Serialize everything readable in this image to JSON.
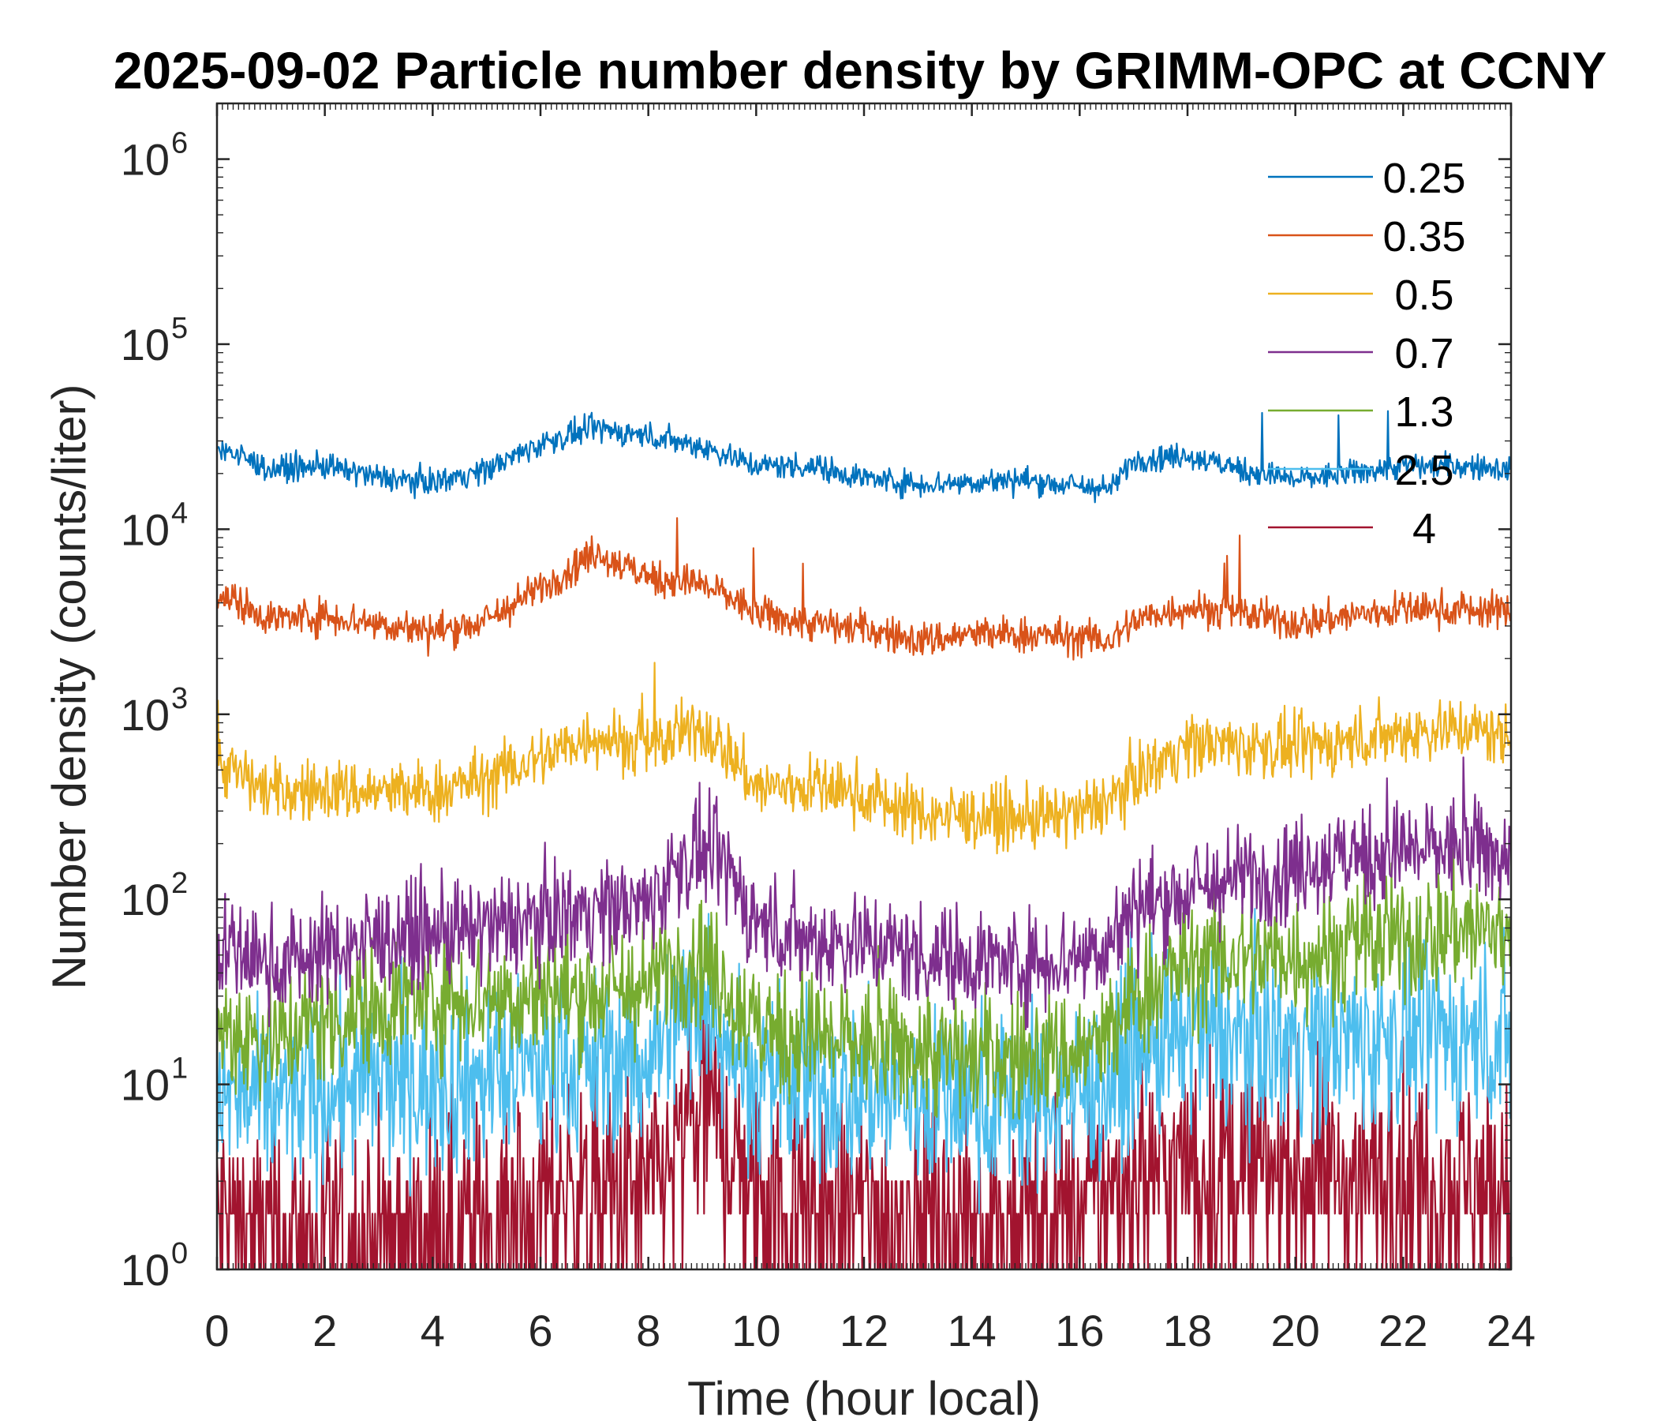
{
  "chart_data": {
    "type": "line",
    "title": "2025-09-02 Particle number density by GRIMM-OPC at CCNY",
    "xlabel": "Time (hour local)",
    "ylabel": "Number density (counts/liter)",
    "xlim": [
      0,
      24
    ],
    "ylim": [
      1,
      2000000
    ],
    "yscale": "log",
    "x_ticks": [
      0,
      2,
      4,
      6,
      8,
      10,
      12,
      14,
      16,
      18,
      20,
      22,
      24
    ],
    "x_tick_labels": [
      "0",
      "2",
      "4",
      "6",
      "8",
      "10",
      "12",
      "14",
      "16",
      "18",
      "20",
      "22",
      "24"
    ],
    "y_ticks": [
      {
        "value": 1,
        "base": "10",
        "exp": "0"
      },
      {
        "value": 10,
        "base": "10",
        "exp": "1"
      },
      {
        "value": 100,
        "base": "10",
        "exp": "2"
      },
      {
        "value": 1000,
        "base": "10",
        "exp": "3"
      },
      {
        "value": 10000,
        "base": "10",
        "exp": "4"
      },
      {
        "value": 100000,
        "base": "10",
        "exp": "5"
      },
      {
        "value": 1000000,
        "base": "10",
        "exp": "6"
      }
    ],
    "legend": {
      "location": "top-right"
    },
    "x": [
      0,
      1,
      2,
      3,
      4,
      5,
      6,
      7,
      8,
      8.5,
      9,
      9.5,
      10,
      11,
      12,
      13,
      14,
      15,
      16,
      16.6,
      17,
      18,
      19,
      20,
      21,
      22,
      23,
      24
    ],
    "series": [
      {
        "name": "0.25",
        "color": "#0072BD",
        "noise": 0.05,
        "values": [
          28000,
          21000,
          22000,
          19000,
          18000,
          21000,
          29000,
          35000,
          32000,
          30000,
          28000,
          25000,
          22000,
          22000,
          19000,
          17500,
          18000,
          18500,
          17000,
          16500,
          24000,
          25000,
          21000,
          18500,
          20000,
          22000,
          22000,
          21000
        ]
      },
      {
        "name": "0.35",
        "color": "#D95319",
        "noise": 0.07,
        "values": [
          4500,
          3300,
          3400,
          3100,
          2800,
          3200,
          4800,
          7500,
          5500,
          5300,
          5000,
          4300,
          3500,
          3100,
          2900,
          2500,
          2700,
          2700,
          2600,
          2500,
          3200,
          3800,
          3500,
          3100,
          3400,
          3700,
          3700,
          3600
        ]
      },
      {
        "name": "0.5",
        "color": "#EDB120",
        "noise": 0.12,
        "values": [
          550,
          380,
          390,
          380,
          380,
          450,
          580,
          780,
          650,
          750,
          850,
          620,
          400,
          410,
          370,
          290,
          280,
          270,
          290,
          350,
          450,
          700,
          680,
          650,
          720,
          800,
          850,
          750
        ]
      },
      {
        "name": "0.7",
        "color": "#7E2F8E",
        "noise": 0.2,
        "values": [
          55,
          45,
          52,
          62,
          65,
          68,
          80,
          90,
          92,
          150,
          180,
          140,
          75,
          60,
          60,
          50,
          48,
          45,
          50,
          60,
          90,
          110,
          130,
          150,
          170,
          180,
          190,
          170
        ]
      },
      {
        "name": "1.3",
        "color": "#77AC30",
        "noise": 0.25,
        "values": [
          20,
          18,
          22,
          27,
          30,
          30,
          30,
          32,
          33,
          45,
          50,
          30,
          20,
          18,
          16,
          15,
          14,
          14,
          15,
          18,
          30,
          45,
          48,
          50,
          55,
          60,
          70,
          65
        ]
      },
      {
        "name": "2.5",
        "color": "#4DBEEE",
        "noise": 0.35,
        "values": [
          8,
          8,
          9,
          10,
          10,
          11,
          12,
          13,
          14,
          22,
          30,
          18,
          10,
          9,
          9,
          8,
          8,
          8,
          9,
          10,
          15,
          18,
          18,
          17,
          17,
          18,
          18,
          17
        ]
      },
      {
        "name": "4",
        "color": "#A2142F",
        "noise": 0.45,
        "values": [
          2,
          1.5,
          1.5,
          1.5,
          1.6,
          1.8,
          2.2,
          2.5,
          2.5,
          4,
          8,
          5,
          2.5,
          2.3,
          2,
          1.8,
          1.8,
          1.8,
          2,
          2.5,
          3.5,
          3.5,
          3.5,
          3.3,
          3.3,
          3.2,
          3,
          2.5
        ]
      }
    ]
  }
}
